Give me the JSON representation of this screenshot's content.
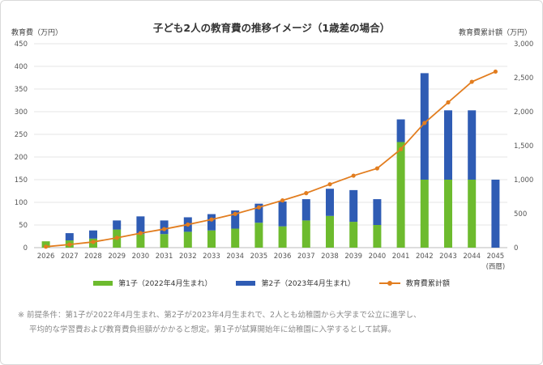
{
  "chart_data": {
    "type": "bar+line",
    "title": "子ども2人の教育費の推移イメージ（1歳差の場合）",
    "ylabel": "教育費（万円）",
    "y2label": "教育費累計額（万円）",
    "xunit": "(西暦)",
    "ylim": [
      0,
      450
    ],
    "y2lim": [
      0,
      3000
    ],
    "yticks": [
      0,
      50,
      100,
      150,
      200,
      250,
      300,
      350,
      400,
      450
    ],
    "y2ticks": [
      0,
      500,
      1000,
      1500,
      2000,
      2500,
      3000
    ],
    "y2tick_labels": [
      "0",
      "500",
      "1,000",
      "1,500",
      "2,000",
      "2,500",
      "3,000"
    ],
    "categories": [
      "2026",
      "2027",
      "2028",
      "2029",
      "2030",
      "2031",
      "2032",
      "2033",
      "2034",
      "2035",
      "2036",
      "2037",
      "2038",
      "2039",
      "2040",
      "2041",
      "2042",
      "2043",
      "2044",
      "2045"
    ],
    "series": [
      {
        "name": "第1子（2022年4月生まれ）",
        "type": "bar",
        "axis": "left",
        "color": "#6dbb2e",
        "values": [
          14,
          16,
          20,
          40,
          30,
          30,
          35,
          38,
          42,
          55,
          47,
          60,
          70,
          57,
          50,
          233,
          150,
          150,
          150,
          0
        ]
      },
      {
        "name": "第2子（2023年4月生まれ）",
        "type": "bar",
        "axis": "left",
        "color": "#2f5cb4",
        "values": [
          0,
          16,
          18,
          20,
          39,
          30,
          32,
          36,
          40,
          42,
          55,
          47,
          60,
          70,
          57,
          50,
          235,
          153,
          153,
          150
        ]
      },
      {
        "name": "教育費累計額",
        "type": "line",
        "axis": "right",
        "color": "#e27d1f",
        "values": [
          14,
          46,
          84,
          144,
          213,
          273,
          340,
          414,
          496,
          593,
          695,
          802,
          932,
          1059,
          1166,
          1449,
          1834,
          2137,
          2440,
          2590
        ]
      }
    ],
    "legend_position": "bottom",
    "grid": true
  },
  "footnote": {
    "line1": "※ 前提条件：第1子が2022年4月生まれ、第2子が2023年4月生まれで、2人とも幼稚園から大学まで公立に進学し、",
    "line2": "平均的な学習費および教育費負担額がかかると想定。第1子が試算開始年に幼稚園に入学するとして試算。"
  }
}
